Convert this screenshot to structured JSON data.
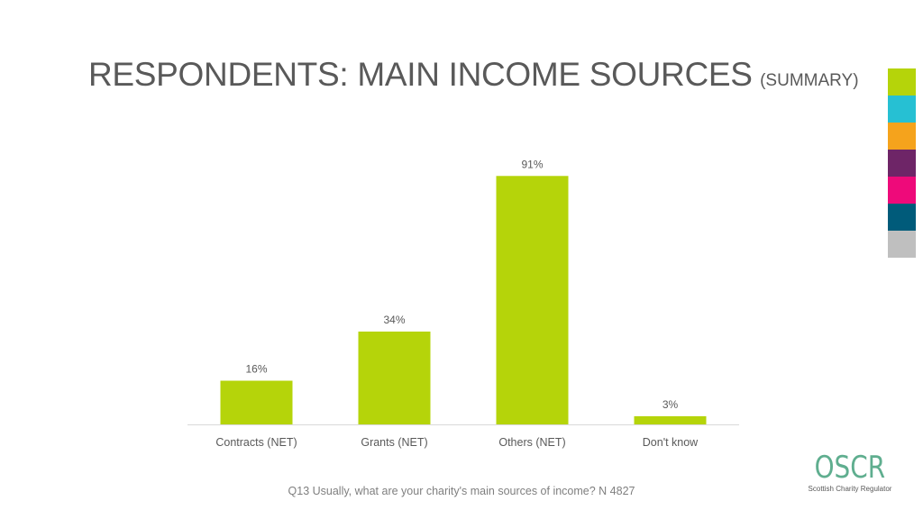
{
  "header": {
    "title": "RESPONDENTS: MAIN INCOME SOURCES",
    "subtitle": "(SUMMARY)"
  },
  "palette": [
    "#b5d40a",
    "#26c0d3",
    "#f5a31c",
    "#6e2567",
    "#ee0a7a",
    "#005b7a",
    "#bfbfbf"
  ],
  "chart_data": {
    "type": "bar",
    "categories": [
      "Contracts (NET)",
      "Grants (NET)",
      "Others (NET)",
      "Don't know"
    ],
    "values": [
      16,
      34,
      91,
      3
    ],
    "data_labels": [
      "16%",
      "34%",
      "91%",
      "3%"
    ],
    "value_unit": "%",
    "ylim": [
      0,
      100
    ],
    "bar_color": "#b5d40a",
    "grid": false,
    "legend": "none"
  },
  "footnote": "Q13 Usually, what are your charity's main sources of income? N 4827",
  "logo": {
    "wordmark": "OSCR",
    "tagline": "Scottish Charity Regulator"
  }
}
